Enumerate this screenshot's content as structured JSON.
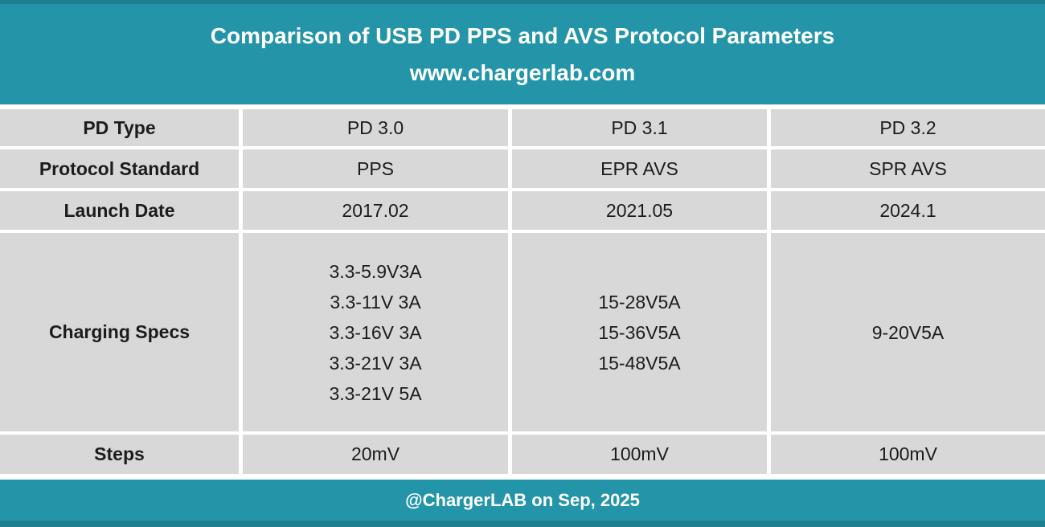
{
  "header": {
    "title": "Comparison of USB PD PPS and AVS Protocol Parameters",
    "subtitle": "www.chargerlab.com"
  },
  "chart_data": {
    "type": "table",
    "title": "Comparison of USB PD PPS and AVS Protocol Parameters",
    "subtitle": "www.chargerlab.com",
    "rows": [
      {
        "label": "PD Type",
        "values": [
          "PD 3.0",
          "PD 3.1",
          "PD 3.2"
        ]
      },
      {
        "label": "Protocol Standard",
        "values": [
          "PPS",
          "EPR AVS",
          "SPR AVS"
        ]
      },
      {
        "label": "Launch Date",
        "values": [
          "2017.02",
          "2021.05",
          "2024.1"
        ]
      },
      {
        "label": "Charging Specs",
        "values": [
          [
            "3.3-5.9V3A",
            "3.3-11V 3A",
            "3.3-16V 3A",
            "3.3-21V 3A",
            "3.3-21V 5A"
          ],
          [
            "15-28V5A",
            "15-36V5A",
            "15-48V5A"
          ],
          [
            "9-20V5A"
          ]
        ]
      },
      {
        "label": "Steps",
        "values": [
          "20mV",
          "100mV",
          "100mV"
        ]
      }
    ],
    "credit": "@ChargerLAB on Sep, 2025"
  },
  "footer": {
    "credit": "@ChargerLAB on Sep, 2025"
  },
  "colors": {
    "teal": "#2495A9",
    "teal_dark": "#1F7E90",
    "cell_gray": "#D8D8D8",
    "text": "#1C1C1C",
    "header_text": "#FFFFFF"
  }
}
